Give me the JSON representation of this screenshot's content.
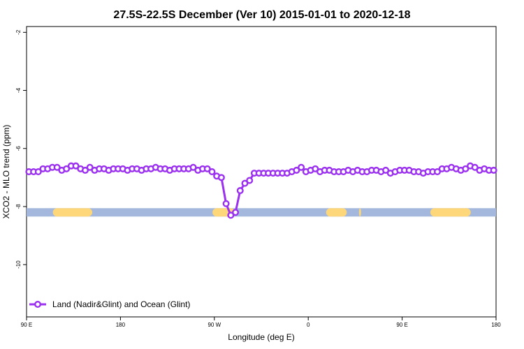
{
  "chart_data": {
    "type": "line",
    "title": "27.5S-22.5S December (Ver 10)   2015-01-01 to 2020-12-18",
    "xlabel": "Longitude (deg E)",
    "ylabel": "XCO2 - MLO trend (ppm)",
    "xlim": [
      -90,
      410
    ],
    "ylim": [
      -11.8,
      -1.8
    ],
    "x_ticks": [
      {
        "value": -90,
        "label": "90 E"
      },
      {
        "value": 10,
        "label": "180"
      },
      {
        "value": 110,
        "label": "90 W"
      },
      {
        "value": 210,
        "label": "0"
      },
      {
        "value": 310,
        "label": "90 E"
      },
      {
        "value": 410,
        "label": "180"
      }
    ],
    "y_ticks": [
      {
        "value": -2,
        "label": "-2"
      },
      {
        "value": -4,
        "label": "-4"
      },
      {
        "value": -6,
        "label": "-6"
      },
      {
        "value": -8,
        "label": "-8"
      },
      {
        "value": -10,
        "label": "-10"
      }
    ],
    "grid": false,
    "legend_position": "bottom-left",
    "series": [
      {
        "name": "Land (Nadir&Glint) and Ocean (Glint)",
        "color": "#9b30f0",
        "x": [
          -87.5,
          -82.5,
          -77.5,
          -72.5,
          -67.5,
          -62.5,
          -57.5,
          -52.5,
          -47.5,
          -42.5,
          -37.5,
          -32.5,
          -27.5,
          -22.5,
          -17.5,
          -12.5,
          -7.5,
          -2.5,
          2.5,
          7.5,
          12.5,
          17.5,
          22.5,
          27.5,
          32.5,
          37.5,
          42.5,
          47.5,
          52.5,
          57.5,
          62.5,
          67.5,
          72.5,
          77.5,
          82.5,
          87.5,
          92.5,
          97.5,
          102.5,
          107.5,
          112.5,
          117.5,
          122.5,
          127.5,
          132.5,
          137.5,
          142.5,
          147.5,
          152.5,
          157.5,
          162.5,
          167.5,
          172.5,
          177.5,
          182.5,
          187.5,
          192.5,
          197.5,
          202.5,
          207.5,
          212.5,
          217.5,
          222.5,
          227.5,
          232.5,
          237.5,
          242.5,
          247.5,
          252.5,
          257.5,
          262.5,
          267.5,
          272.5,
          277.5,
          282.5,
          287.5,
          292.5,
          297.5,
          302.5,
          307.5,
          312.5,
          317.5,
          322.5,
          327.5,
          332.5,
          337.5,
          342.5,
          347.5,
          352.5,
          357.5,
          362.5,
          367.5,
          372.5,
          377.5,
          382.5,
          387.5,
          392.5,
          397.5,
          402.5,
          407.5
        ],
        "values": [
          -6.8,
          -6.8,
          -6.8,
          -6.7,
          -6.7,
          -6.65,
          -6.65,
          -6.75,
          -6.7,
          -6.6,
          -6.6,
          -6.7,
          -6.75,
          -6.65,
          -6.75,
          -6.7,
          -6.7,
          -6.75,
          -6.7,
          -6.7,
          -6.7,
          -6.75,
          -6.7,
          -6.7,
          -6.75,
          -6.7,
          -6.7,
          -6.65,
          -6.7,
          -6.7,
          -6.75,
          -6.7,
          -6.7,
          -6.7,
          -6.7,
          -6.65,
          -6.75,
          -6.7,
          -6.7,
          -6.8,
          -6.95,
          -7.0,
          -7.9,
          -8.3,
          -8.2,
          -7.45,
          -7.2,
          -7.1,
          -6.85,
          -6.85,
          -6.85,
          -6.85,
          -6.85,
          -6.85,
          -6.85,
          -6.85,
          -6.8,
          -6.75,
          -6.65,
          -6.8,
          -6.75,
          -6.7,
          -6.8,
          -6.75,
          -6.75,
          -6.8,
          -6.8,
          -6.8,
          -6.75,
          -6.8,
          -6.75,
          -6.8,
          -6.8,
          -6.75,
          -6.75,
          -6.8,
          -6.75,
          -6.85,
          -6.8,
          -6.75,
          -6.75,
          -6.75,
          -6.8,
          -6.8,
          -6.85,
          -6.8,
          -6.8,
          -6.8,
          -6.7,
          -6.7,
          -6.65,
          -6.7,
          -6.75,
          -6.7,
          -6.6,
          -6.65,
          -6.75,
          -6.7,
          -6.75,
          -6.75
        ]
      }
    ],
    "surface_bar": {
      "y": -8.2,
      "ocean_color": "#a3b8dc",
      "land_color": "#fdd77a",
      "land_segments": [
        [
          -62,
          -20
        ],
        [
          108,
          132
        ],
        [
          229,
          251
        ],
        [
          264,
          266
        ],
        [
          340,
          383
        ]
      ]
    }
  }
}
